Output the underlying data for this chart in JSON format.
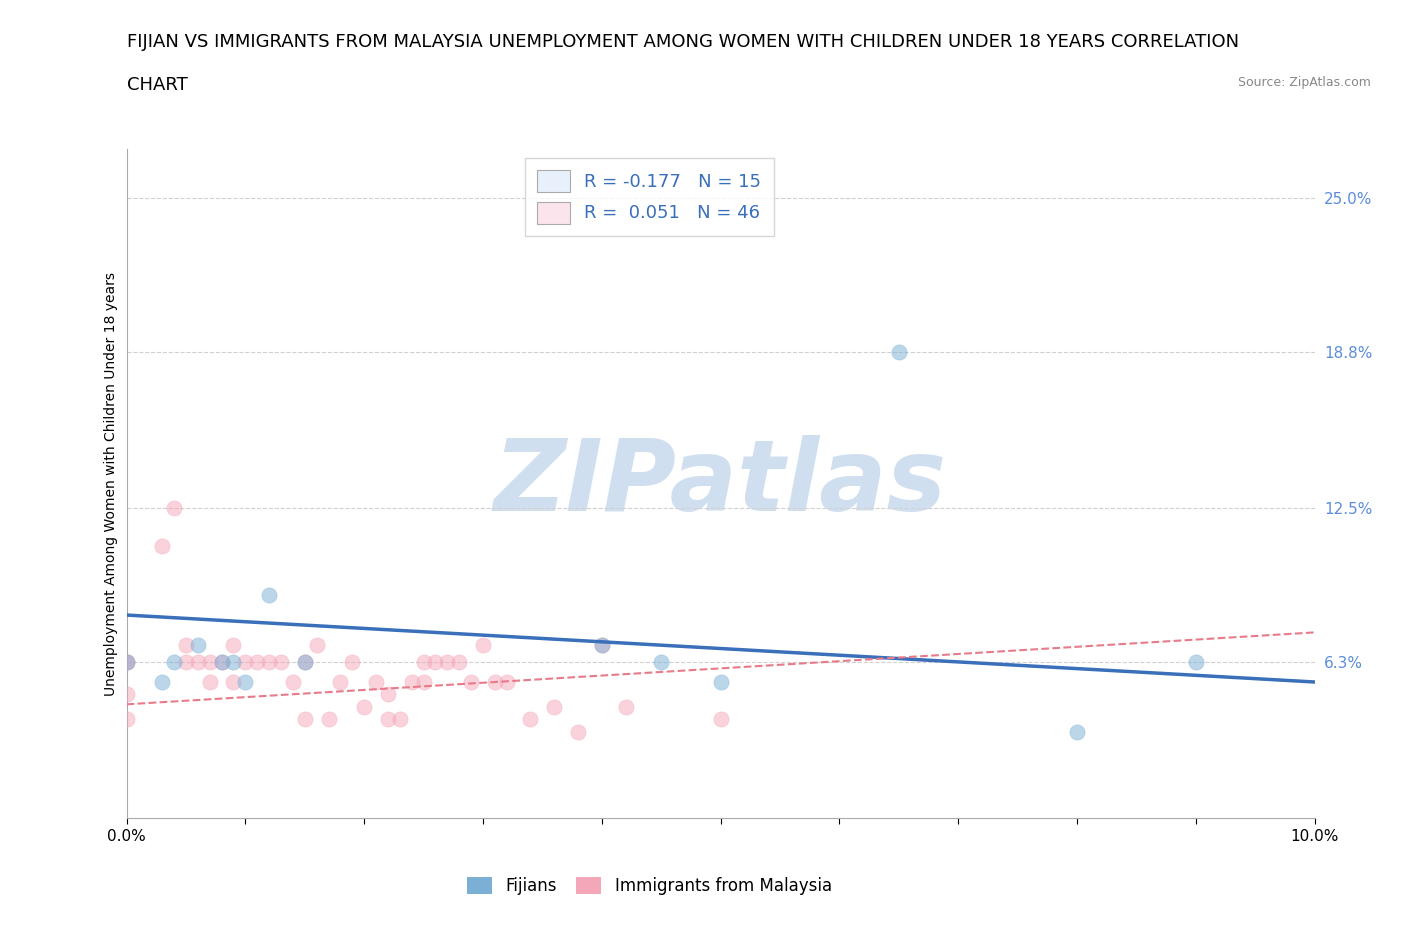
{
  "title_line1": "FIJIAN VS IMMIGRANTS FROM MALAYSIA UNEMPLOYMENT AMONG WOMEN WITH CHILDREN UNDER 18 YEARS CORRELATION",
  "title_line2": "CHART",
  "source": "Source: ZipAtlas.com",
  "ylabel": "Unemployment Among Women with Children Under 18 years",
  "background_color": "#ffffff",
  "watermark": "ZIPatlas",
  "fijian_scatter_x": [
    0.0,
    0.003,
    0.004,
    0.006,
    0.008,
    0.009,
    0.01,
    0.012,
    0.015,
    0.04,
    0.045,
    0.05,
    0.065,
    0.08,
    0.09
  ],
  "fijian_scatter_y": [
    0.063,
    0.055,
    0.063,
    0.07,
    0.063,
    0.063,
    0.055,
    0.09,
    0.063,
    0.07,
    0.063,
    0.055,
    0.188,
    0.035,
    0.063
  ],
  "malaysia_scatter_x": [
    0.0,
    0.0,
    0.0,
    0.0,
    0.003,
    0.004,
    0.005,
    0.005,
    0.006,
    0.007,
    0.007,
    0.008,
    0.009,
    0.009,
    0.01,
    0.011,
    0.012,
    0.013,
    0.014,
    0.015,
    0.015,
    0.016,
    0.017,
    0.018,
    0.019,
    0.02,
    0.021,
    0.022,
    0.022,
    0.023,
    0.024,
    0.025,
    0.025,
    0.026,
    0.027,
    0.028,
    0.029,
    0.03,
    0.031,
    0.032,
    0.034,
    0.036,
    0.038,
    0.04,
    0.042,
    0.05
  ],
  "malaysia_scatter_y": [
    0.063,
    0.063,
    0.05,
    0.04,
    0.11,
    0.125,
    0.07,
    0.063,
    0.063,
    0.055,
    0.063,
    0.063,
    0.055,
    0.07,
    0.063,
    0.063,
    0.063,
    0.063,
    0.055,
    0.04,
    0.063,
    0.07,
    0.04,
    0.055,
    0.063,
    0.045,
    0.055,
    0.05,
    0.04,
    0.04,
    0.055,
    0.063,
    0.055,
    0.063,
    0.063,
    0.063,
    0.055,
    0.07,
    0.055,
    0.055,
    0.04,
    0.045,
    0.035,
    0.07,
    0.045,
    0.04
  ],
  "fijian_color": "#7bafd4",
  "malaysia_color": "#f4a7b9",
  "fijian_patch_color": "#aec6f0",
  "malaysia_patch_color": "#f4a7b9",
  "fijian_trend_x": [
    0.0,
    0.1
  ],
  "fijian_trend_y": [
    0.082,
    0.055
  ],
  "malaysia_trend_x": [
    0.0,
    0.1
  ],
  "malaysia_trend_y": [
    0.046,
    0.075
  ],
  "xmin": 0.0,
  "xmax": 0.1,
  "ymin": 0.0,
  "ymax": 0.27,
  "right_yticks": [
    0.063,
    0.125,
    0.188,
    0.25
  ],
  "right_yticklabels": [
    "6.3%",
    "12.5%",
    "18.8%",
    "25.0%"
  ],
  "grid_color": "#d0d0d0",
  "title_fontsize": 13,
  "axis_label_fontsize": 10,
  "tick_fontsize": 11,
  "scatter_size": 120,
  "scatter_alpha": 0.5,
  "watermark_color": "#d0dff0",
  "watermark_fontsize": 72,
  "legend_r1": "R = -0.177   N = 15",
  "legend_r2": "R =  0.051   N = 46",
  "legend_blue_color": "#e8f0fb",
  "legend_pink_color": "#fce4ec"
}
